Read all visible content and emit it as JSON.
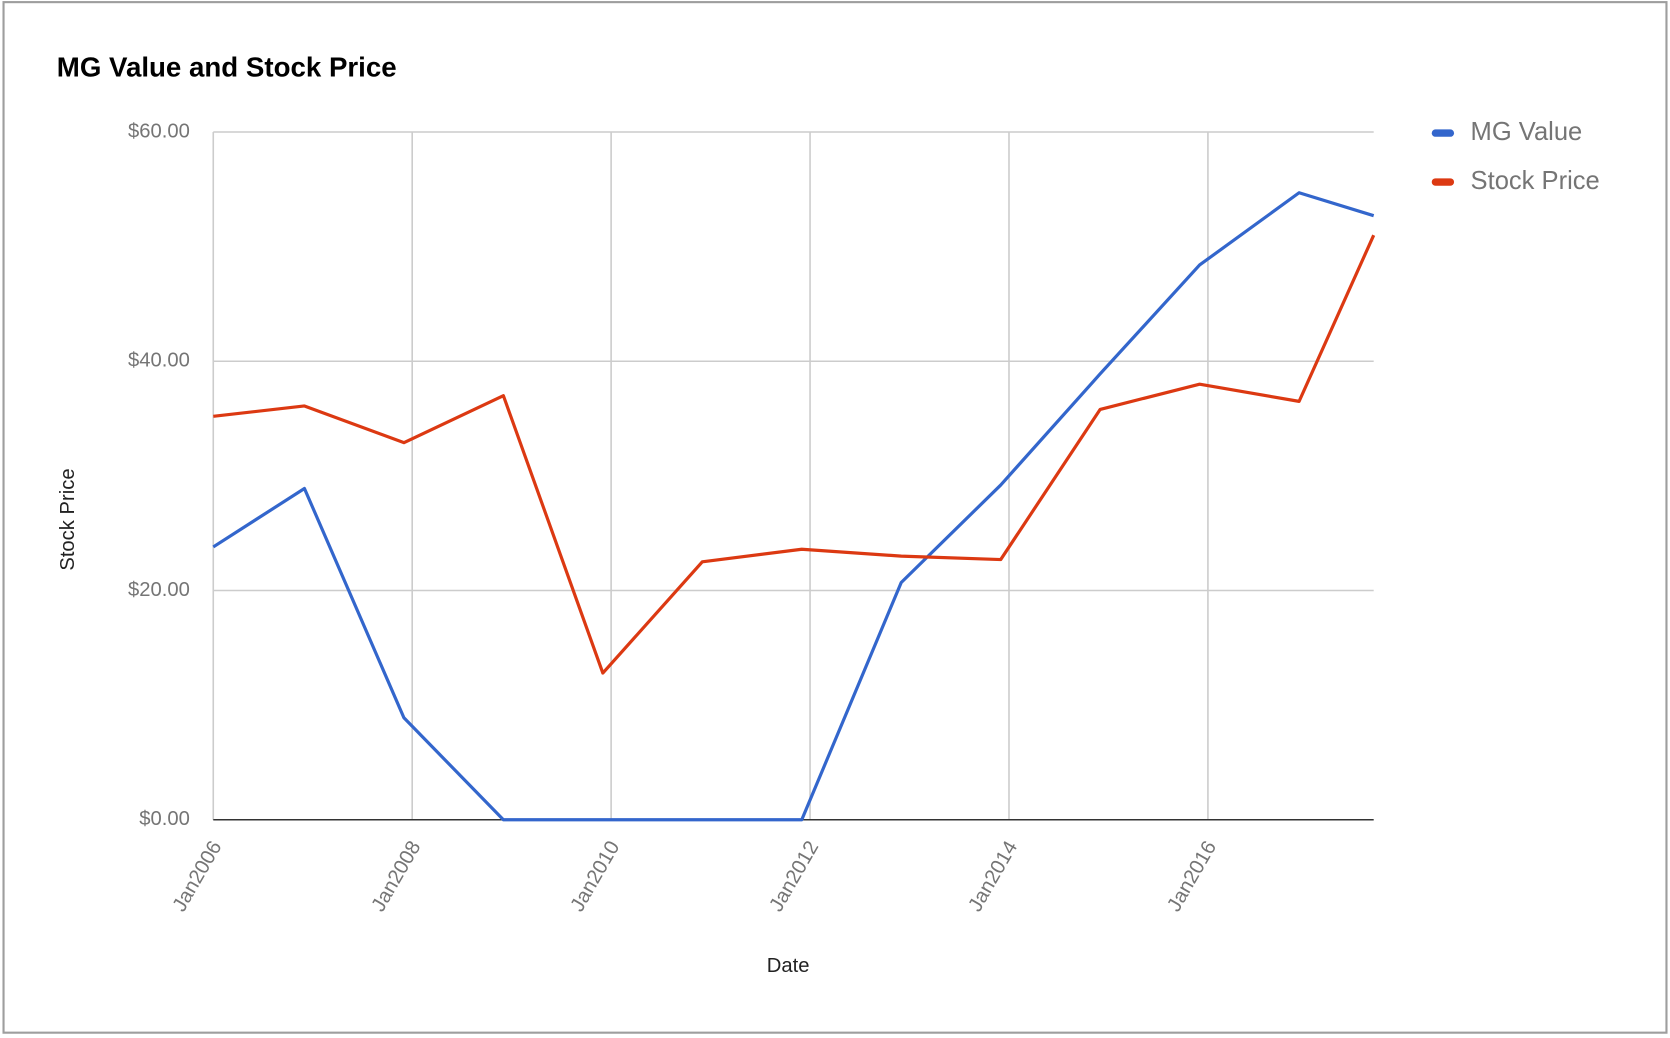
{
  "chart_data": {
    "type": "line",
    "title": "MG Value and Stock Price",
    "x_label": "Date",
    "y_label": "Stock Price",
    "x": [
      "2006-01",
      "2006-12",
      "2007-12",
      "2008-12",
      "2009-12",
      "2010-12",
      "2011-12",
      "2012-12",
      "2013-12",
      "2014-12",
      "2015-12",
      "2016-12",
      "2017-09"
    ],
    "series": [
      {
        "name": "MG Value",
        "color": "#3366cc",
        "values": [
          23.8,
          28.9,
          8.9,
          0,
          0,
          0,
          0,
          20.7,
          29.2,
          38.9,
          48.4,
          54.7,
          52.7
        ]
      },
      {
        "name": "Stock Price",
        "color": "#dc3912",
        "values": [
          35.2,
          36.1,
          32.9,
          37.0,
          12.8,
          22.5,
          23.6,
          23.0,
          22.7,
          35.8,
          38.0,
          36.5,
          51.0
        ]
      }
    ],
    "xlim": [
      "2006-01",
      "2017-09"
    ],
    "xticks": [
      {
        "value": "2006-01",
        "label": "Jan2006"
      },
      {
        "value": "2008-01",
        "label": "Jan2008"
      },
      {
        "value": "2010-01",
        "label": "Jan2010"
      },
      {
        "value": "2012-01",
        "label": "Jan2012"
      },
      {
        "value": "2014-01",
        "label": "Jan2014"
      },
      {
        "value": "2016-01",
        "label": "Jan2016"
      }
    ],
    "ylim": [
      0,
      60
    ],
    "yticks": [
      {
        "value": 0,
        "label": "$0.00"
      },
      {
        "value": 20,
        "label": "$20.00"
      },
      {
        "value": 40,
        "label": "$40.00"
      },
      {
        "value": 60,
        "label": "$60.00"
      }
    ],
    "grid": true,
    "legend": "right"
  }
}
